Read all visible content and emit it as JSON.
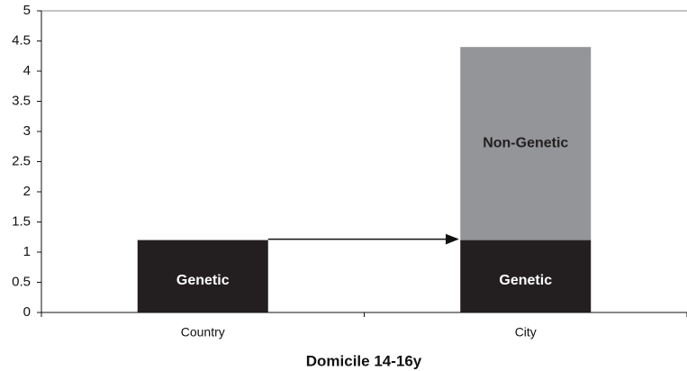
{
  "chart_data": {
    "type": "stacked_bar",
    "x_label": "Domicile 14-16y",
    "categories": [
      "Country",
      "City"
    ],
    "series": [
      {
        "name": "Genetic",
        "color": "#231f20",
        "values": [
          1.2,
          1.2
        ]
      },
      {
        "name": "Non-Genetic",
        "color": "#939598",
        "values": [
          0,
          3.2
        ]
      }
    ],
    "ylim": [
      0,
      5
    ],
    "yticks": [
      0,
      0.5,
      1,
      1.5,
      2,
      2.5,
      3,
      3.5,
      4,
      4.5,
      5
    ],
    "grid": false
  }
}
